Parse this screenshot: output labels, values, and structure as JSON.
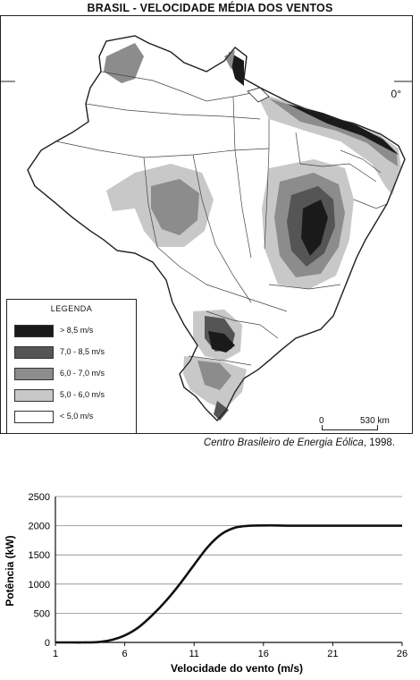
{
  "map": {
    "title": "BRASIL - VELOCIDADE MÉDIA DOS VENTOS",
    "equator_label": "0°",
    "legend": {
      "title": "LEGENDA",
      "items": [
        {
          "label": "> 8,5  m/s",
          "color": "#1a1a1a"
        },
        {
          "label": "7,0 - 8,5  m/s",
          "color": "#555555"
        },
        {
          "label": "6,0 - 7,0  m/s",
          "color": "#8c8c8c"
        },
        {
          "label": "5,0 - 6,0  m/s",
          "color": "#c8c8c8"
        },
        {
          "label": "< 5,0 m/s",
          "color": "#ffffff"
        }
      ]
    },
    "scale": {
      "zero": "0",
      "distance": "530 km"
    },
    "source_italic": "Centro Brasileiro de Energia Eólica",
    "source_year": ", 1998."
  },
  "chart_data": {
    "type": "line",
    "xlabel": "Velocidade do vento (m/s)",
    "ylabel": "Potência (kW)",
    "xlim": [
      1,
      26
    ],
    "ylim": [
      0,
      2500
    ],
    "xticks": [
      1,
      6,
      11,
      16,
      21,
      26
    ],
    "yticks": [
      0,
      500,
      1000,
      1500,
      2000,
      2500
    ],
    "grid": "horizontal",
    "series": [
      {
        "x": [
          1,
          2,
          3,
          4,
          5,
          6,
          7,
          8,
          9,
          10,
          11,
          12,
          13,
          14,
          15,
          16,
          17,
          18,
          20,
          22,
          24,
          26
        ],
        "y": [
          0,
          0,
          0,
          5,
          40,
          120,
          260,
          470,
          720,
          1010,
          1330,
          1640,
          1860,
          1970,
          2000,
          2005,
          2005,
          2000,
          2000,
          2000,
          2000,
          2000
        ]
      }
    ]
  }
}
